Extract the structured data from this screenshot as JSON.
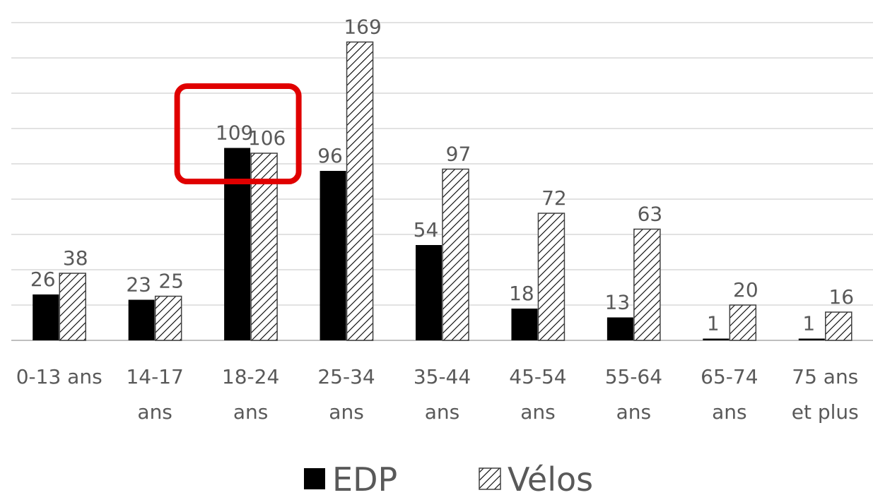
{
  "chart_data": {
    "type": "bar",
    "categories": [
      [
        "0-13 ans"
      ],
      [
        "14-17",
        "ans"
      ],
      [
        "18-24",
        "ans"
      ],
      [
        "25-34",
        "ans"
      ],
      [
        "35-44",
        "ans"
      ],
      [
        "45-54",
        "ans"
      ],
      [
        "55-64",
        "ans"
      ],
      [
        "65-74",
        "ans"
      ],
      [
        "75 ans",
        "et plus"
      ]
    ],
    "series": [
      {
        "name": "EDP",
        "values": [
          26,
          23,
          109,
          96,
          54,
          18,
          13,
          1,
          1
        ],
        "fill": "solid",
        "color": "#000000"
      },
      {
        "name": "Vélos",
        "values": [
          38,
          25,
          106,
          169,
          97,
          72,
          63,
          20,
          16
        ],
        "fill": "hatched",
        "color": "#000000"
      }
    ],
    "ylim": [
      0,
      180
    ],
    "gridlines": true,
    "legend_position": "bottom-center",
    "highlight": {
      "category_index": 2,
      "color": "#e00000"
    }
  }
}
